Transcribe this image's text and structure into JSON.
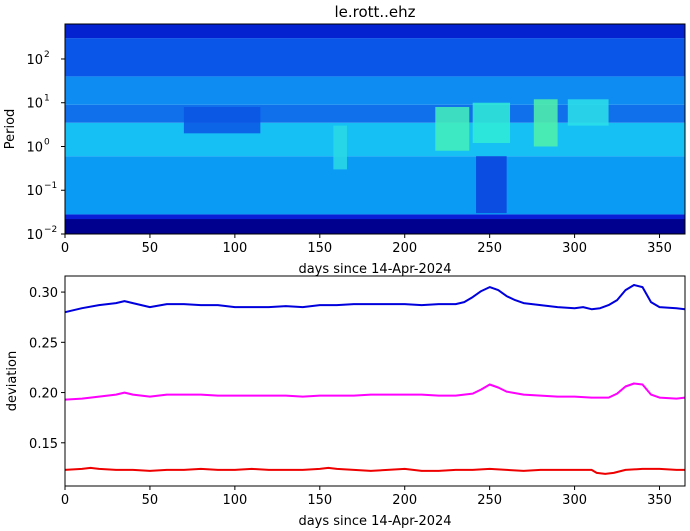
{
  "chart_data": [
    {
      "type": "heatmap",
      "title": "le.rott..ehz",
      "xlabel": "days since 14-Apr-2024",
      "ylabel": "Period",
      "xlim": [
        0,
        365
      ],
      "ylim": [
        0.01,
        630
      ],
      "yscale": "log",
      "x_ticks": [
        0,
        50,
        100,
        150,
        200,
        250,
        300,
        350
      ],
      "y_ticks": [
        {
          "value": 0.01,
          "label_base": "10",
          "label_exp": "−2"
        },
        {
          "value": 0.1,
          "label_base": "10",
          "label_exp": "−1"
        },
        {
          "value": 1,
          "label_base": "10",
          "label_exp": "0"
        },
        {
          "value": 10,
          "label_base": "10",
          "label_exp": "1"
        },
        {
          "value": 100,
          "label_base": "10",
          "label_exp": "2"
        }
      ],
      "colormap": "jet",
      "bands": [
        {
          "period_range": [
            0.01,
            0.022
          ],
          "color": "#00008f"
        },
        {
          "period_range": [
            0.022,
            0.028
          ],
          "color": "#0a1ed8"
        },
        {
          "period_range": [
            0.028,
            0.6
          ],
          "color": "#0a9cf4"
        },
        {
          "period_range": [
            0.6,
            3.5
          ],
          "color": "#16c0f4"
        },
        {
          "period_range": [
            3.5,
            9
          ],
          "color": "#1070ec"
        },
        {
          "period_range": [
            9,
            40
          ],
          "color": "#0f8cf2"
        },
        {
          "period_range": [
            40,
            300
          ],
          "color": "#0a56e8"
        },
        {
          "period_range": [
            300,
            630
          ],
          "color": "#0522d0"
        }
      ],
      "features": [
        {
          "days": [
            218,
            238
          ],
          "period_range": [
            0.8,
            8
          ],
          "color": "#44f0b8"
        },
        {
          "days": [
            240,
            262
          ],
          "period_range": [
            1.2,
            10
          ],
          "color": "#30ecd6"
        },
        {
          "days": [
            276,
            290
          ],
          "period_range": [
            1,
            12
          ],
          "color": "#52f2a8"
        },
        {
          "days": [
            296,
            320
          ],
          "period_range": [
            3,
            12
          ],
          "color": "#2de0e8"
        },
        {
          "days": [
            158,
            166
          ],
          "period_range": [
            0.3,
            3
          ],
          "color": "#2adae4"
        },
        {
          "days": [
            242,
            260
          ],
          "period_range": [
            0.03,
            0.6
          ],
          "color": "#0a40dc"
        },
        {
          "days": [
            70,
            115
          ],
          "period_range": [
            2,
            8
          ],
          "color": "#0a54e4"
        }
      ]
    },
    {
      "type": "line",
      "xlabel": "days since 14-Apr-2024",
      "ylabel": "deviation",
      "xlim": [
        0,
        365
      ],
      "ylim": [
        0.107,
        0.316
      ],
      "x_ticks": [
        0,
        50,
        100,
        150,
        200,
        250,
        300,
        350
      ],
      "y_ticks": [
        "0.15",
        "0.20",
        "0.25",
        "0.30"
      ],
      "series": [
        {
          "color": "#0000dd",
          "x": [
            0,
            10,
            20,
            30,
            35,
            40,
            50,
            60,
            70,
            80,
            90,
            100,
            110,
            120,
            130,
            140,
            150,
            160,
            170,
            180,
            190,
            200,
            210,
            220,
            230,
            235,
            240,
            245,
            250,
            255,
            260,
            265,
            270,
            280,
            290,
            300,
            305,
            310,
            315,
            320,
            325,
            330,
            335,
            340,
            345,
            350,
            360,
            365
          ],
          "y": [
            0.28,
            0.284,
            0.287,
            0.289,
            0.291,
            0.289,
            0.285,
            0.288,
            0.288,
            0.287,
            0.287,
            0.285,
            0.285,
            0.285,
            0.286,
            0.285,
            0.287,
            0.287,
            0.288,
            0.288,
            0.288,
            0.288,
            0.287,
            0.288,
            0.288,
            0.29,
            0.295,
            0.301,
            0.305,
            0.302,
            0.296,
            0.292,
            0.289,
            0.287,
            0.285,
            0.284,
            0.285,
            0.283,
            0.284,
            0.287,
            0.292,
            0.302,
            0.307,
            0.305,
            0.29,
            0.285,
            0.284,
            0.283
          ]
        },
        {
          "color": "#ff00ff",
          "x": [
            0,
            10,
            20,
            30,
            35,
            40,
            50,
            60,
            70,
            80,
            90,
            100,
            110,
            120,
            130,
            140,
            150,
            160,
            170,
            180,
            190,
            200,
            210,
            220,
            230,
            240,
            245,
            250,
            255,
            260,
            270,
            280,
            290,
            300,
            310,
            320,
            325,
            330,
            335,
            340,
            345,
            350,
            360,
            365
          ],
          "y": [
            0.193,
            0.194,
            0.196,
            0.198,
            0.2,
            0.198,
            0.196,
            0.198,
            0.198,
            0.198,
            0.197,
            0.197,
            0.197,
            0.197,
            0.197,
            0.196,
            0.197,
            0.197,
            0.197,
            0.198,
            0.198,
            0.198,
            0.198,
            0.197,
            0.197,
            0.199,
            0.203,
            0.208,
            0.205,
            0.201,
            0.198,
            0.197,
            0.196,
            0.196,
            0.195,
            0.195,
            0.199,
            0.206,
            0.209,
            0.208,
            0.198,
            0.195,
            0.194,
            0.195
          ]
        },
        {
          "color": "#ee0000",
          "x": [
            0,
            10,
            15,
            20,
            30,
            40,
            50,
            60,
            70,
            80,
            90,
            100,
            110,
            120,
            130,
            140,
            150,
            155,
            160,
            170,
            180,
            190,
            200,
            210,
            220,
            230,
            240,
            250,
            260,
            270,
            280,
            290,
            300,
            310,
            313,
            318,
            323,
            330,
            340,
            350,
            360,
            365
          ],
          "y": [
            0.123,
            0.124,
            0.125,
            0.124,
            0.123,
            0.123,
            0.122,
            0.123,
            0.123,
            0.124,
            0.123,
            0.123,
            0.124,
            0.123,
            0.123,
            0.123,
            0.124,
            0.125,
            0.124,
            0.123,
            0.122,
            0.123,
            0.124,
            0.122,
            0.122,
            0.123,
            0.123,
            0.124,
            0.123,
            0.122,
            0.123,
            0.123,
            0.123,
            0.123,
            0.12,
            0.119,
            0.12,
            0.123,
            0.124,
            0.124,
            0.123,
            0.123
          ]
        }
      ]
    }
  ]
}
